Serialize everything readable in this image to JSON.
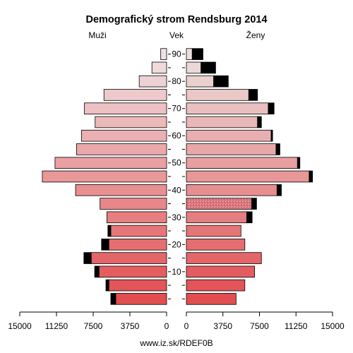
{
  "chart_data": {
    "type": "bar",
    "title": "Demografický strom Rendsburg 2014",
    "left_label": "Muži",
    "center_label": "Vek",
    "right_label": "Ženy",
    "footer": "www.iz.sk/RDEF0B",
    "age_groups": [
      "0-4",
      "5-9",
      "10-14",
      "15-19",
      "20-24",
      "25-29",
      "30-34",
      "35-39",
      "40-44",
      "45-49",
      "50-54",
      "55-59",
      "60-64",
      "65-69",
      "70-74",
      "75-79",
      "80-84",
      "85-89",
      "90+"
    ],
    "age_tick_labels": [
      "90",
      "80",
      "70",
      "60",
      "50",
      "40",
      "30",
      "20",
      "10"
    ],
    "age_tick_values": [
      90,
      80,
      70,
      60,
      50,
      40,
      30,
      20,
      10
    ],
    "xlim": [
      0,
      15000
    ],
    "x_tick_labels_left": [
      "15000",
      "11250",
      "7500",
      "3750",
      "0"
    ],
    "x_tick_labels_right": [
      "0",
      "3750",
      "7500",
      "11250",
      "15000"
    ],
    "x_tick_values_left": [
      15000,
      11250,
      7500,
      3750,
      0
    ],
    "x_tick_values_right": [
      0,
      3750,
      7500,
      11250,
      15000
    ],
    "series": [
      {
        "name": "Muži",
        "values": [
          5200,
          5900,
          6900,
          7700,
          5900,
          5700,
          6100,
          6800,
          9300,
          12700,
          11400,
          9200,
          8700,
          7300,
          8400,
          6400,
          2800,
          1500,
          600
        ],
        "foreign": [
          500,
          300,
          450,
          750,
          750,
          300,
          0,
          0,
          0,
          0,
          0,
          0,
          0,
          0,
          0,
          0,
          0,
          0,
          0
        ]
      },
      {
        "name": "Ženy",
        "values": [
          5100,
          6000,
          7000,
          7700,
          6000,
          5600,
          6200,
          6700,
          9300,
          12600,
          11400,
          9200,
          8700,
          7300,
          8400,
          6400,
          2800,
          1500,
          600
        ],
        "foreign": [
          0,
          0,
          0,
          0,
          0,
          0,
          550,
          500,
          450,
          350,
          250,
          400,
          150,
          400,
          600,
          900,
          1500,
          1500,
          1100
        ]
      }
    ],
    "colors": {
      "bar_border": "#000000",
      "foreign": "#000000",
      "female_speckle_group": "35-39"
    }
  }
}
